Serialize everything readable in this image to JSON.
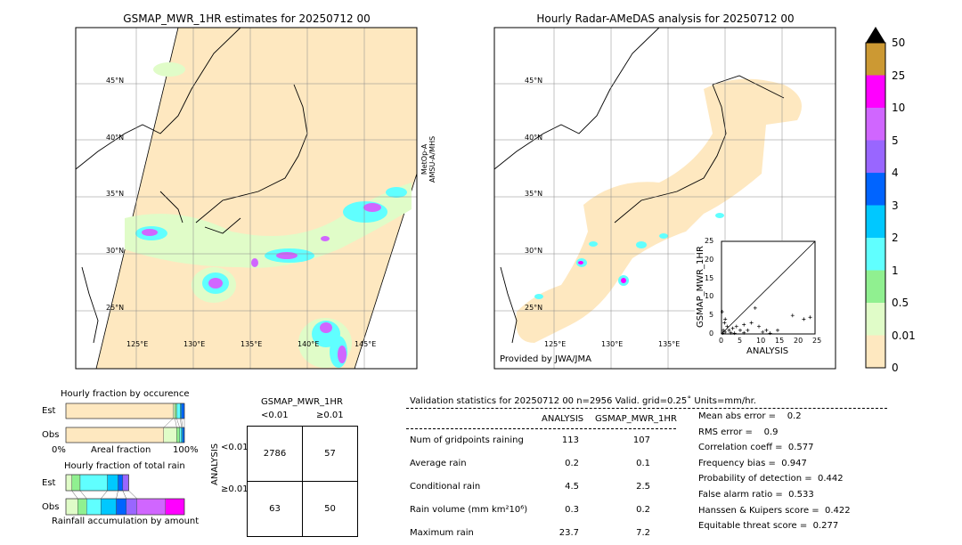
{
  "left_map": {
    "title": "GSMAP_MWR_1HR estimates for 20250712 00",
    "sensor_label": "MetOp-A\nAMSU-A/MHS",
    "lat_labels": [
      "45°N",
      "40°N",
      "35°N",
      "30°N",
      "25°N"
    ],
    "lon_labels": [
      "125°E",
      "130°E",
      "135°E",
      "140°E",
      "145°E"
    ]
  },
  "right_map": {
    "title": "Hourly Radar-AMeDAS analysis for 20250712 00",
    "credit": "Provided by JWA/JMA",
    "lat_labels": [
      "45°N",
      "40°N",
      "35°N",
      "30°N",
      "25°N"
    ],
    "lon_labels": [
      "125°E",
      "130°E",
      "135°E"
    ]
  },
  "scatter": {
    "xlabel": "ANALYSIS",
    "ylabel": "GSMAP_MWR_1HR",
    "ticks": [
      "0",
      "5",
      "10",
      "15",
      "20",
      "25"
    ],
    "range": [
      0,
      25
    ],
    "points": [
      [
        0.3,
        0.2
      ],
      [
        0.5,
        1
      ],
      [
        1,
        0.5
      ],
      [
        1.5,
        2
      ],
      [
        2,
        1
      ],
      [
        0.8,
        3
      ],
      [
        3,
        1.5
      ],
      [
        4,
        2
      ],
      [
        5,
        1
      ],
      [
        6,
        2.5
      ],
      [
        7,
        1
      ],
      [
        8,
        3
      ],
      [
        9,
        7
      ],
      [
        10,
        2
      ],
      [
        12,
        1
      ],
      [
        15,
        1
      ],
      [
        19,
        5
      ],
      [
        22,
        4
      ],
      [
        23.7,
        4.5
      ],
      [
        0.2,
        6
      ],
      [
        1,
        4
      ],
      [
        2.5,
        0.3
      ],
      [
        3.5,
        0.2
      ],
      [
        6,
        0.3
      ],
      [
        11,
        0.5
      ],
      [
        13,
        0.2
      ]
    ]
  },
  "colorbar": {
    "labels": [
      "0",
      "0.01",
      "0.5",
      "1",
      "2",
      "3",
      "4",
      "5",
      "10",
      "25",
      "50"
    ],
    "colors": [
      "#fee8c0",
      "#e0fcc8",
      "#90f090",
      "#60ffff",
      "#00c8ff",
      "#0064ff",
      "#9966ff",
      "#d066ff",
      "#ff00ff",
      "#cc9933"
    ]
  },
  "occurrence": {
    "title": "Hourly fraction by occurence",
    "est_label": "Est",
    "obs_label": "Obs",
    "axis_left": "0%",
    "axis_mid": "Areal fraction",
    "axis_right": "100%",
    "est": [
      0.905,
      0.015,
      0.015,
      0.03,
      0.01,
      0.025
    ],
    "obs": [
      0.825,
      0.11,
      0.025,
      0.015,
      0.01,
      0.015
    ]
  },
  "total_rain": {
    "title": "Hourly fraction of total rain",
    "est_label": "Est",
    "obs_label": "Obs",
    "footer": "Rainfall accumulation by amount",
    "est": [
      0.05,
      0.07,
      0.23,
      0.09,
      0.04,
      0.05
    ],
    "obs": [
      0.1,
      0.075,
      0.12,
      0.13,
      0.085,
      0.09,
      0.24,
      0.16
    ]
  },
  "contingency": {
    "title": "GSMAP_MWR_1HR",
    "col1": "<0.01",
    "col2": "≥0.01",
    "row_axis": "ANALYSIS",
    "row1": "<0.01",
    "row2": "≥0.01",
    "a": "2786",
    "b": "57",
    "c": "63",
    "d": "50"
  },
  "stats": {
    "header": "Validation statistics for 20250712 00  n=2956 Valid. grid=0.25˚ Units=mm/hr.",
    "col_analysis": "ANALYSIS",
    "col_gsmap": "GSMAP_MWR_1HR",
    "rows": [
      {
        "label": "Num of gridpoints raining",
        "a": "113",
        "g": "107"
      },
      {
        "label": "Average rain",
        "a": "0.2",
        "g": "0.1"
      },
      {
        "label": "Conditional rain",
        "a": "4.5",
        "g": "2.5"
      },
      {
        "label": "Rain volume (mm km²10⁶)",
        "a": "0.3",
        "g": "0.2"
      },
      {
        "label": "Maximum rain",
        "a": "23.7",
        "g": "7.2"
      }
    ],
    "scores": [
      "Mean abs error =    0.2",
      "RMS error =    0.9",
      "Correlation coeff =  0.577",
      "Frequency bias =  0.947",
      "Probability of detection =  0.442",
      "False alarm ratio =  0.533",
      "Hanssen & Kuipers score =  0.422",
      "Equitable threat score =  0.277"
    ]
  }
}
